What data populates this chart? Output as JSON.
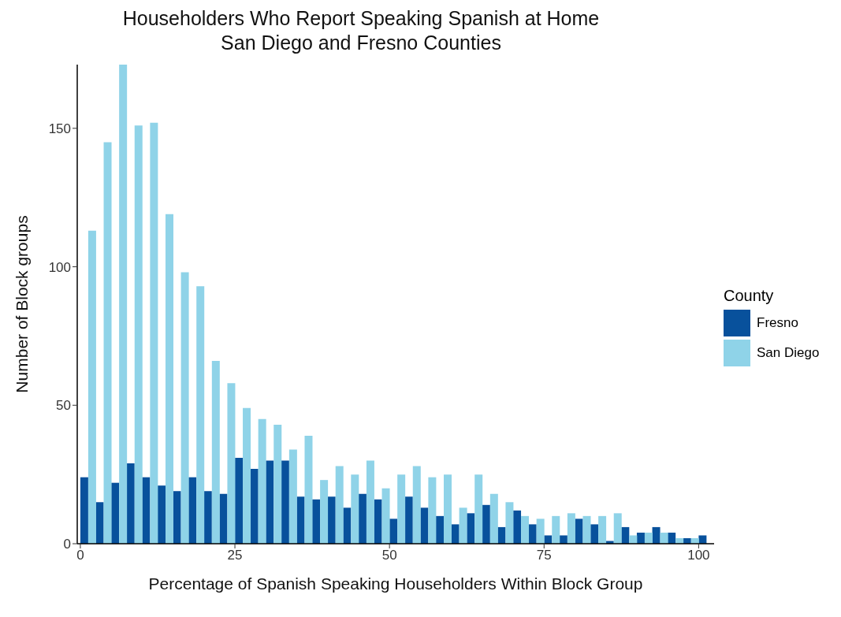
{
  "chart_data": {
    "type": "histogram",
    "title": "Householders Who Report Speaking Spanish at Home",
    "subtitle": "San Diego and Fresno Counties",
    "xlabel": "Percentage of Spanish Speaking Householders Within Block Group",
    "ylabel": "Number of Block groups",
    "legend_title": "County",
    "legend": "right",
    "bins": [
      0,
      2.5,
      5,
      7.5,
      10,
      12.5,
      15,
      17.5,
      20,
      22.5,
      25,
      27.5,
      30,
      32.5,
      35,
      37.5,
      40,
      42.5,
      45,
      47.5,
      50,
      52.5,
      55,
      57.5,
      60,
      62.5,
      65,
      67.5,
      70,
      72.5,
      75,
      77.5,
      80,
      82.5,
      85,
      87.5,
      90,
      92.5,
      95,
      97.5,
      100,
      102.5
    ],
    "series": [
      {
        "name": "Fresno",
        "color": "#08519c",
        "values": [
          24,
          15,
          22,
          29,
          24,
          21,
          19,
          24,
          19,
          18,
          31,
          27,
          30,
          30,
          17,
          16,
          17,
          13,
          18,
          16,
          9,
          17,
          13,
          10,
          7,
          11,
          14,
          6,
          12,
          7,
          3,
          3,
          9,
          7,
          1,
          6,
          4,
          6,
          4,
          2,
          3
        ]
      },
      {
        "name": "San Diego",
        "color": "#8fd3e8",
        "values": [
          113,
          145,
          173,
          151,
          152,
          119,
          98,
          93,
          66,
          58,
          49,
          45,
          43,
          34,
          39,
          23,
          28,
          25,
          30,
          20,
          25,
          28,
          24,
          25,
          13,
          25,
          18,
          15,
          10,
          9,
          10,
          11,
          10,
          10,
          11,
          3,
          4,
          4,
          2,
          2,
          0
        ]
      }
    ],
    "xlim": [
      -0.5,
      102.5
    ],
    "xticks": [
      0,
      25,
      50,
      75,
      100
    ],
    "ylim": [
      0,
      173
    ],
    "yticks": [
      0,
      50,
      100,
      150
    ],
    "grid": false
  }
}
